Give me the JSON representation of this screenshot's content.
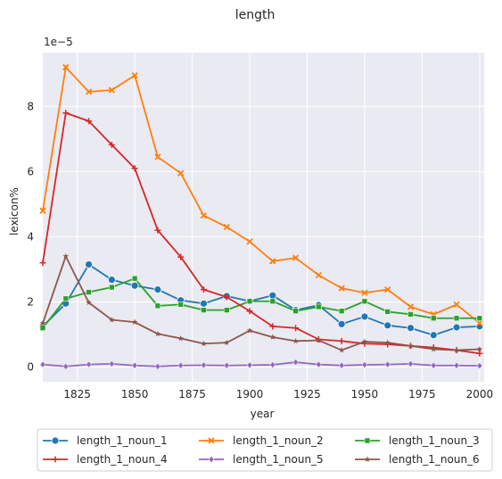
{
  "chart_data": {
    "type": "line",
    "title": "length",
    "xlabel": "year",
    "ylabel": "lexicon%",
    "y_multiplier_label": "1e−5",
    "xlim": [
      1810,
      2002
    ],
    "ylim": [
      -0.45,
      9.65
    ],
    "x_ticks": [
      1825,
      1850,
      1875,
      1900,
      1925,
      1950,
      1975,
      2000
    ],
    "y_ticks": [
      0,
      2,
      4,
      6,
      8
    ],
    "grid": true,
    "legend_position": "bottom",
    "x": [
      1810,
      1820,
      1830,
      1840,
      1850,
      1860,
      1870,
      1880,
      1890,
      1900,
      1910,
      1920,
      1930,
      1940,
      1950,
      1960,
      1970,
      1980,
      1990,
      2000
    ],
    "series": [
      {
        "name": "length_1_noun_1",
        "color": "#1f77b4",
        "marker": "circle",
        "values": [
          1.25,
          1.95,
          3.15,
          2.68,
          2.5,
          2.38,
          2.05,
          1.95,
          2.18,
          2.02,
          2.2,
          1.75,
          1.9,
          1.32,
          1.55,
          1.28,
          1.2,
          0.98,
          1.22,
          1.25
        ]
      },
      {
        "name": "length_1_noun_2",
        "color": "#ff7f0e",
        "marker": "x",
        "values": [
          4.8,
          9.2,
          8.45,
          8.5,
          8.95,
          6.45,
          5.95,
          4.65,
          4.3,
          3.85,
          3.25,
          3.35,
          2.82,
          2.42,
          2.28,
          2.38,
          1.85,
          1.62,
          1.92,
          1.35
        ]
      },
      {
        "name": "length_1_noun_3",
        "color": "#2ca02c",
        "marker": "square",
        "values": [
          1.2,
          2.1,
          2.3,
          2.45,
          2.72,
          1.88,
          1.92,
          1.75,
          1.75,
          2.02,
          2.02,
          1.72,
          1.85,
          1.72,
          2.02,
          1.7,
          1.62,
          1.5,
          1.5,
          1.5
        ]
      },
      {
        "name": "length_1_noun_4",
        "color": "#d62728",
        "marker": "plus",
        "values": [
          3.2,
          7.8,
          7.55,
          6.82,
          6.1,
          4.2,
          3.38,
          2.38,
          2.15,
          1.72,
          1.25,
          1.2,
          0.85,
          0.8,
          0.72,
          0.7,
          0.65,
          0.6,
          0.52,
          0.42
        ]
      },
      {
        "name": "length_1_noun_5",
        "color": "#9467bd",
        "marker": "diamond",
        "values": [
          0.08,
          0.02,
          0.08,
          0.1,
          0.05,
          0.02,
          0.05,
          0.06,
          0.05,
          0.06,
          0.07,
          0.15,
          0.08,
          0.05,
          0.07,
          0.08,
          0.1,
          0.05,
          0.05,
          0.04
        ]
      },
      {
        "name": "length_1_noun_6",
        "color": "#8c564b",
        "marker": "star",
        "values": [
          1.35,
          3.4,
          1.98,
          1.45,
          1.38,
          1.02,
          0.88,
          0.72,
          0.75,
          1.12,
          0.92,
          0.8,
          0.82,
          0.52,
          0.78,
          0.75,
          0.65,
          0.55,
          0.52,
          0.55
        ]
      }
    ]
  }
}
